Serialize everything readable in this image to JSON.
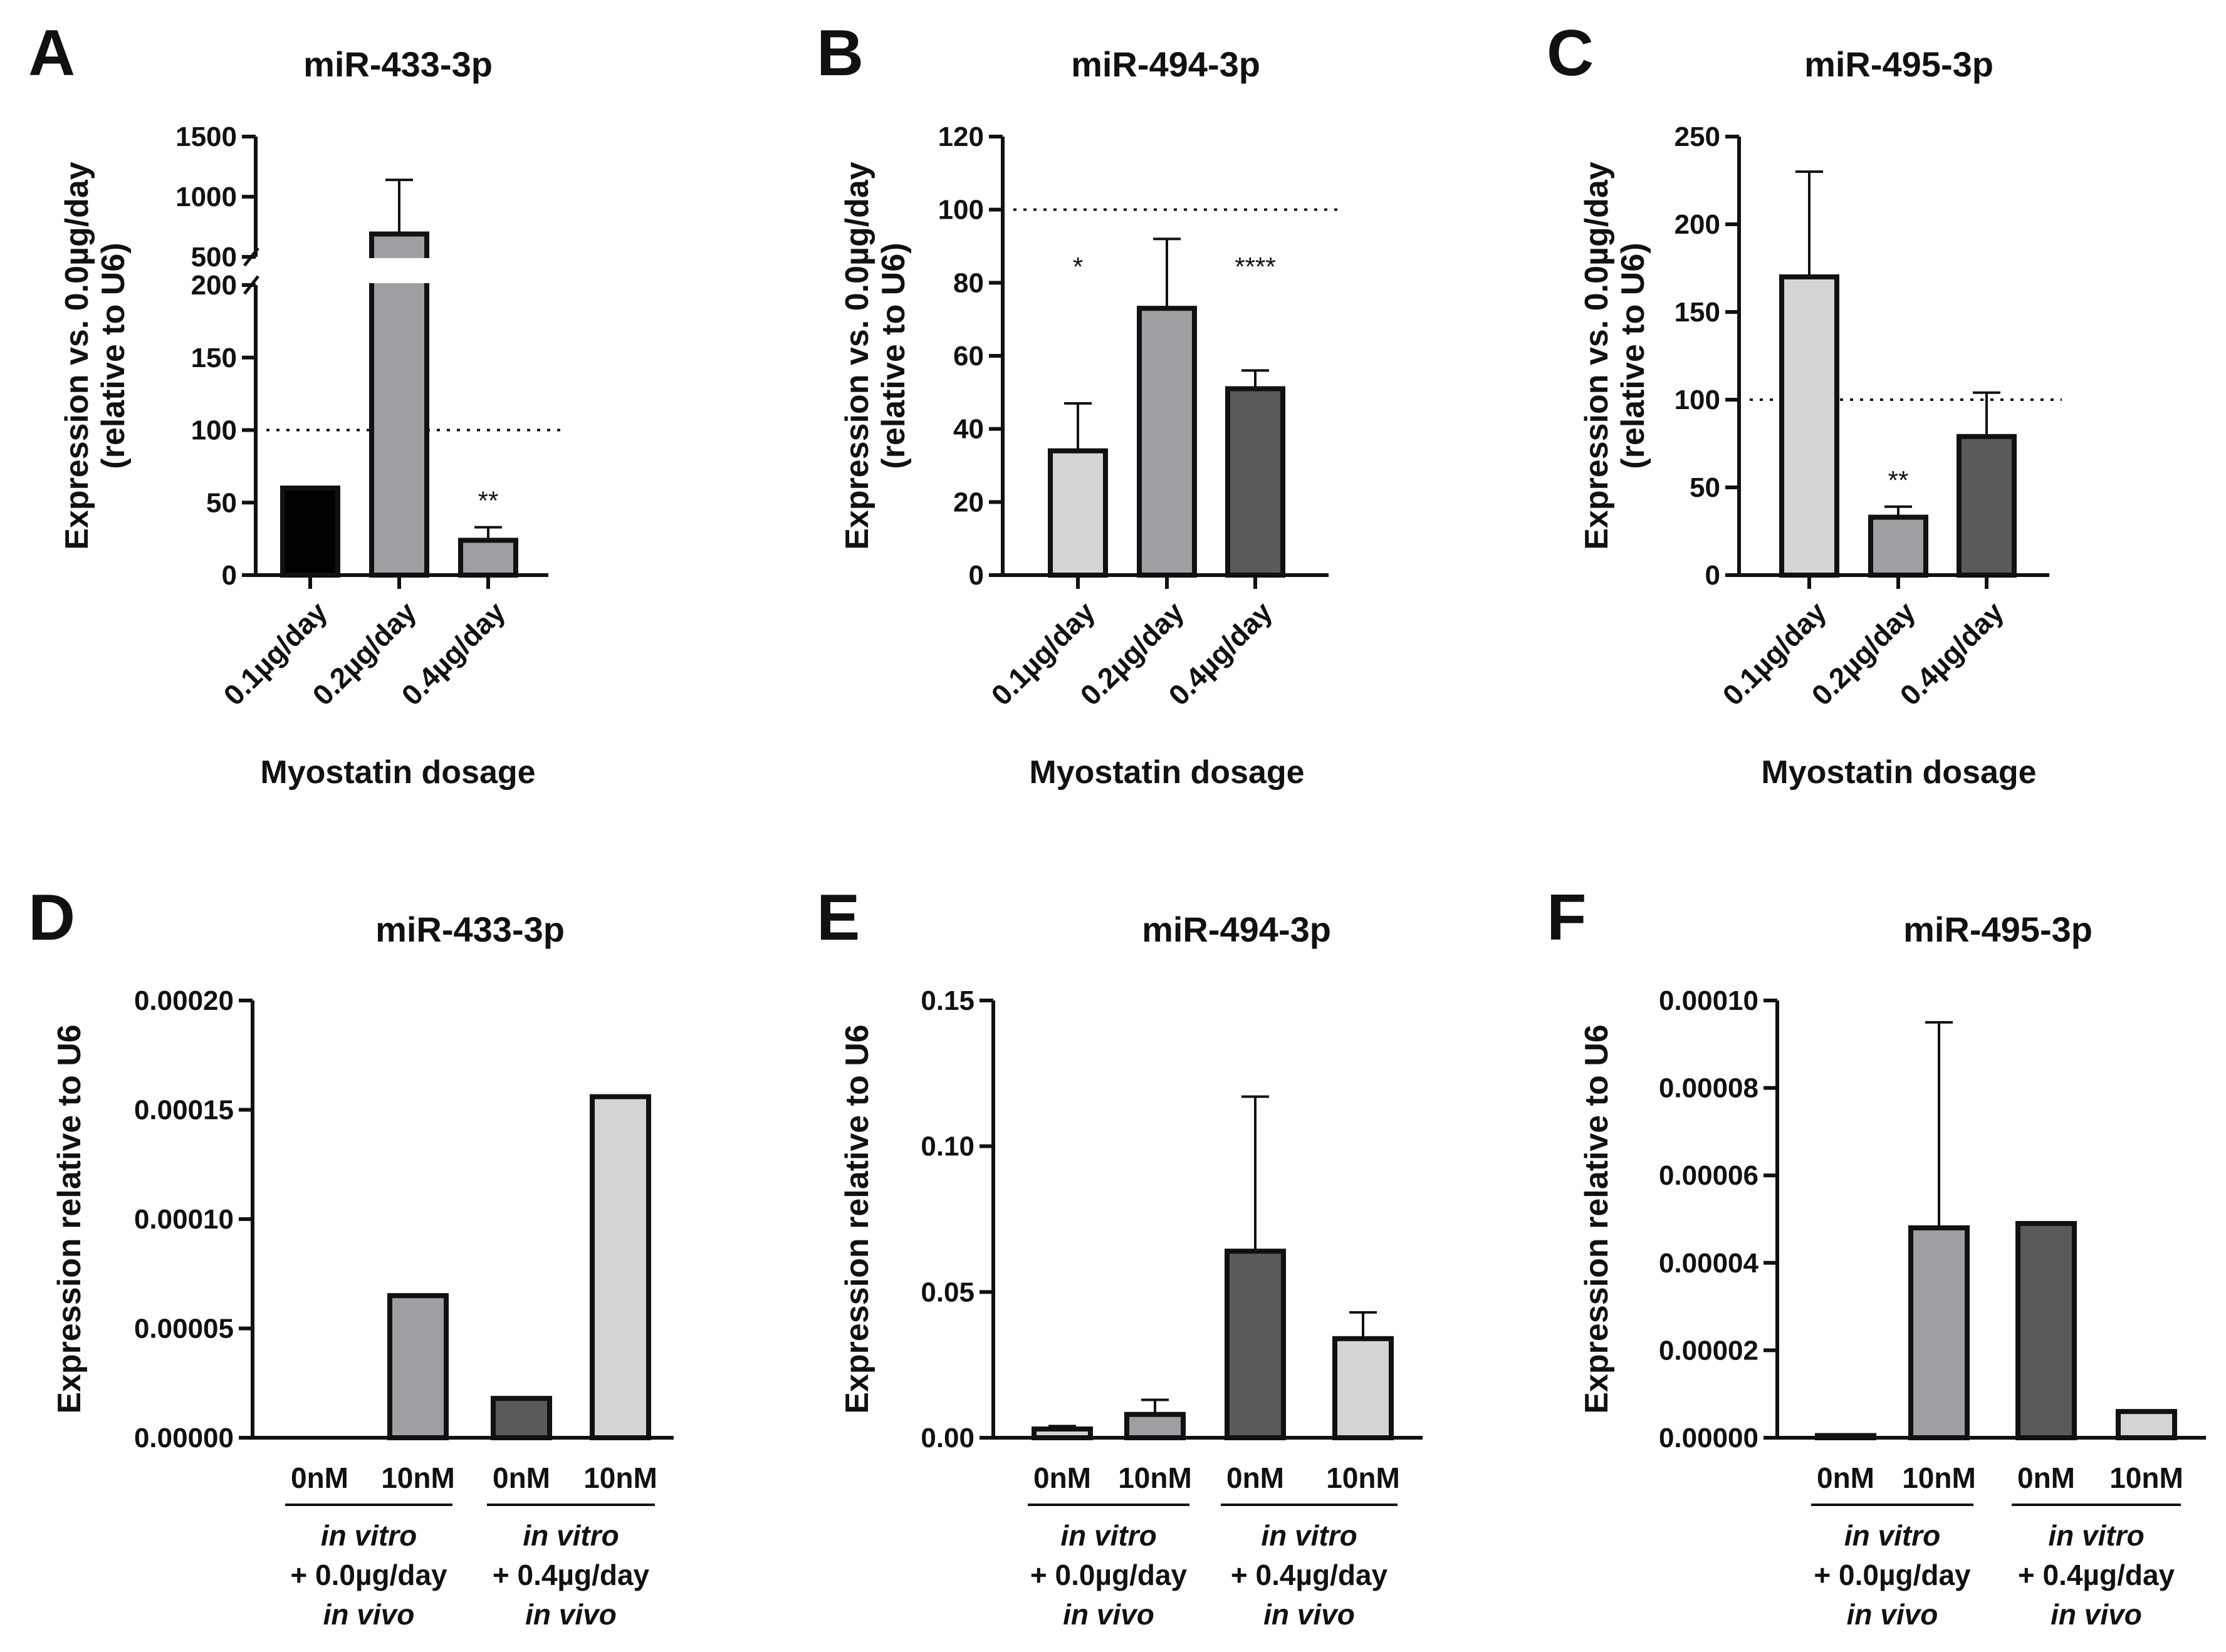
{
  "colors": {
    "light": "#d4d4d4",
    "mid": "#9e9ea3",
    "dark": "#5a5a5a",
    "black": "#000000"
  },
  "chart_data": [
    {
      "letter": "A",
      "type": "bar",
      "title": "miR-433-3p",
      "ylabel": [
        "Expression vs. 0.0µg/day",
        "(relative to U6)"
      ],
      "xlabel": "Myostatin dosage",
      "categories": [
        "0.1µg/day",
        "0.2µg/day",
        "0.4µg/day"
      ],
      "values": [
        60,
        690,
        24
      ],
      "errors": [
        0,
        450,
        9
      ],
      "bar_colors": [
        "black",
        "mid",
        "mid"
      ],
      "annotations": [
        "",
        "",
        "**"
      ],
      "reference_line": 100,
      "broken_axis": {
        "lower": [
          0,
          200
        ],
        "upper": [
          500,
          1500
        ]
      },
      "ticks_lower": [
        0,
        50,
        100,
        150,
        200
      ],
      "ticks_upper": [
        500,
        1000,
        1500
      ]
    },
    {
      "letter": "B",
      "type": "bar",
      "title": "miR-494-3p",
      "ylabel": [
        "Expression vs. 0.0µg/day",
        "(relative to U6)"
      ],
      "xlabel": "Myostatin dosage",
      "categories": [
        "0.1µg/day",
        "0.2µg/day",
        "0.4µg/day"
      ],
      "values": [
        34,
        73,
        51
      ],
      "errors": [
        13,
        19,
        5
      ],
      "bar_colors": [
        "light",
        "mid",
        "dark"
      ],
      "annotations": [
        "*",
        "",
        "****"
      ],
      "reference_line": 100,
      "ylim": [
        0,
        120
      ],
      "ticks": [
        0,
        20,
        40,
        60,
        80,
        100,
        120
      ]
    },
    {
      "letter": "C",
      "type": "bar",
      "title": "miR-495-3p",
      "ylabel": [
        "Expression vs. 0.0µg/day",
        "(relative to U6)"
      ],
      "xlabel": "Myostatin dosage",
      "categories": [
        "0.1µg/day",
        "0.2µg/day",
        "0.4µg/day"
      ],
      "values": [
        170,
        33,
        79
      ],
      "errors": [
        60,
        6,
        25
      ],
      "bar_colors": [
        "light",
        "mid",
        "dark"
      ],
      "annotations": [
        "",
        "**",
        ""
      ],
      "reference_line": 100,
      "ylim": [
        0,
        250
      ],
      "ticks": [
        0,
        50,
        100,
        150,
        200,
        250
      ]
    },
    {
      "letter": "D",
      "type": "bar",
      "title": "miR-433-3p",
      "ylabel": [
        "Expression relative to U6"
      ],
      "categories": [
        "0nM",
        "10nM",
        "0nM",
        "10nM"
      ],
      "values": [
        0,
        6.5e-05,
        1.8e-05,
        0.000156
      ],
      "errors": [
        0,
        0,
        0,
        0
      ],
      "bar_colors": [
        "light",
        "mid",
        "dark",
        "light"
      ],
      "ylim": [
        0,
        0.0002
      ],
      "ticks": [
        0,
        5e-05,
        0.0001,
        0.00015,
        0.0002
      ],
      "tick_labels": [
        "0.00000",
        "0.00005",
        "0.00010",
        "0.00015",
        "0.00020"
      ],
      "groups": [
        {
          "line1": "in vitro",
          "line2": "+ 0.0µg/day",
          "line3": "in vivo"
        },
        {
          "line1": "in vitro",
          "line2": "+ 0.4µg/day",
          "line3": "in vivo"
        }
      ]
    },
    {
      "letter": "E",
      "type": "bar",
      "title": "miR-494-3p",
      "ylabel": [
        "Expression relative to U6"
      ],
      "categories": [
        "0nM",
        "10nM",
        "0nM",
        "10nM"
      ],
      "values": [
        0.003,
        0.008,
        0.064,
        0.034
      ],
      "errors": [
        0.001,
        0.005,
        0.053,
        0.009
      ],
      "bar_colors": [
        "light",
        "mid",
        "dark",
        "light"
      ],
      "ylim": [
        0,
        0.15
      ],
      "ticks": [
        0,
        0.05,
        0.1,
        0.15
      ],
      "tick_labels": [
        "0.00",
        "0.05",
        "0.10",
        "0.15"
      ],
      "groups": [
        {
          "line1": "in vitro",
          "line2": "+ 0.0µg/day",
          "line3": "in vivo"
        },
        {
          "line1": "in vitro",
          "line2": "+ 0.4µg/day",
          "line3": "in vivo"
        }
      ]
    },
    {
      "letter": "F",
      "type": "bar",
      "title": "miR-495-3p",
      "ylabel": [
        "Expression relative to U6"
      ],
      "categories": [
        "0nM",
        "10nM",
        "0nM",
        "10nM"
      ],
      "values": [
        5e-07,
        4.8e-05,
        4.9e-05,
        6e-06
      ],
      "errors": [
        0,
        4.7e-05,
        0,
        0
      ],
      "bar_colors": [
        "light",
        "mid",
        "dark",
        "light"
      ],
      "ylim": [
        0,
        0.0001
      ],
      "ticks": [
        0,
        2e-05,
        4e-05,
        6e-05,
        8e-05,
        0.0001
      ],
      "tick_labels": [
        "0.00000",
        "0.00002",
        "0.00004",
        "0.00006",
        "0.00008",
        "0.00010"
      ],
      "groups": [
        {
          "line1": "in vitro",
          "line2": "+ 0.0µg/day",
          "line3": "in vivo"
        },
        {
          "line1": "in vitro",
          "line2": "+ 0.4µg/day",
          "line3": "in vivo"
        }
      ]
    }
  ]
}
